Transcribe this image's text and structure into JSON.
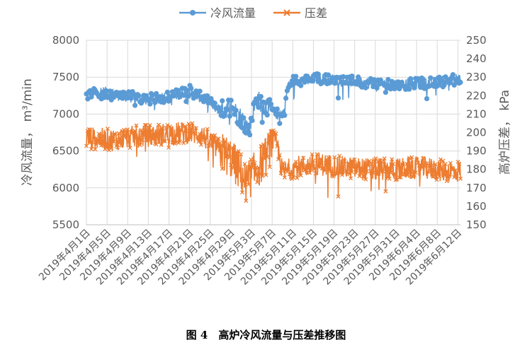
{
  "chart_data": {
    "type": "line",
    "caption": "图 4　高炉冷风流量与压差推移图",
    "y_left": {
      "label": "冷风流量， m³/min",
      "ylim": [
        5500,
        8000
      ],
      "ticks": [
        "5500",
        "6000",
        "6500",
        "7000",
        "7500",
        "8000"
      ]
    },
    "y_right": {
      "label": "高炉压差， kPa",
      "ylim": [
        150,
        250
      ],
      "ticks": [
        "150",
        "160",
        "170",
        "180",
        "190",
        "200",
        "210",
        "220",
        "230",
        "240",
        "250"
      ]
    },
    "x_ticks": [
      "2019年4月1日",
      "2019年4月5日",
      "2019年4月9日",
      "2019年4月13日",
      "2019年4月17日",
      "2019年4月21日",
      "2019年4月25日",
      "2019年4月29日",
      "2019年5月3日",
      "2019年5月7日",
      "2019年5月11日",
      "2019年5月15日",
      "2019年5月19日",
      "2019年5月23日",
      "2019年5月27日",
      "2019年5月31日",
      "2019年6月4日",
      "2019年6月8日",
      "2019年6月12日"
    ],
    "series": [
      {
        "name": "冷风流量",
        "axis": "left",
        "color": "#5b9bd5",
        "marker": "circle",
        "anchors_day": [
          0,
          3,
          7,
          12,
          17,
          20,
          24,
          26,
          28,
          30,
          31.5,
          33,
          35,
          37,
          38,
          39,
          40,
          41,
          42,
          45,
          50,
          55,
          60,
          65,
          68,
          70,
          72.5
        ],
        "anchors_val": [
          7250,
          7300,
          7250,
          7200,
          7250,
          7320,
          7150,
          7050,
          7100,
          6950,
          6800,
          7200,
          7100,
          7000,
          6950,
          7350,
          7450,
          7450,
          7450,
          7480,
          7450,
          7420,
          7400,
          7420,
          7430,
          7450,
          7480
        ]
      },
      {
        "name": "压差",
        "axis": "right",
        "color": "#ed7d31",
        "marker": "x",
        "anchors_day": [
          0,
          5,
          10,
          15,
          20,
          22,
          24,
          26,
          28,
          30,
          31,
          33,
          35,
          36,
          37,
          38,
          40,
          45,
          50,
          55,
          60,
          65,
          70,
          72.5
        ],
        "anchors_val": [
          197,
          196,
          198,
          199,
          200,
          199,
          195,
          190,
          186,
          178,
          173,
          180,
          188,
          196,
          193,
          178,
          181,
          183,
          181,
          180,
          180,
          181,
          179,
          179
        ]
      }
    ]
  }
}
